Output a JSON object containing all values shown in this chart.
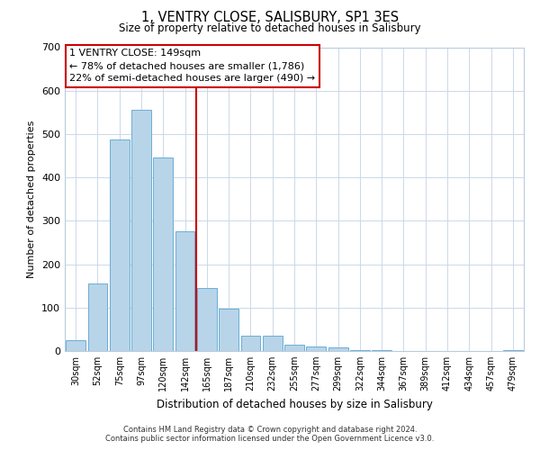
{
  "title": "1, VENTRY CLOSE, SALISBURY, SP1 3ES",
  "subtitle": "Size of property relative to detached houses in Salisbury",
  "xlabel": "Distribution of detached houses by size in Salisbury",
  "ylabel": "Number of detached properties",
  "bar_labels": [
    "30sqm",
    "52sqm",
    "75sqm",
    "97sqm",
    "120sqm",
    "142sqm",
    "165sqm",
    "187sqm",
    "210sqm",
    "232sqm",
    "255sqm",
    "277sqm",
    "299sqm",
    "322sqm",
    "344sqm",
    "367sqm",
    "389sqm",
    "412sqm",
    "434sqm",
    "457sqm",
    "479sqm"
  ],
  "bar_values": [
    25,
    155,
    488,
    555,
    445,
    275,
    145,
    98,
    35,
    35,
    14,
    10,
    8,
    3,
    2,
    1,
    0,
    0,
    0,
    0,
    3
  ],
  "bar_color": "#b8d4e8",
  "bar_edge_color": "#6aaed6",
  "vline_x": 5.5,
  "vline_color": "#cc0000",
  "ylim": [
    0,
    700
  ],
  "yticks": [
    0,
    100,
    200,
    300,
    400,
    500,
    600,
    700
  ],
  "annotation_title": "1 VENTRY CLOSE: 149sqm",
  "annotation_line1": "← 78% of detached houses are smaller (1,786)",
  "annotation_line2": "22% of semi-detached houses are larger (490) →",
  "footnote1": "Contains HM Land Registry data © Crown copyright and database right 2024.",
  "footnote2": "Contains public sector information licensed under the Open Government Licence v3.0.",
  "background_color": "#ffffff",
  "grid_color": "#ccd8e8"
}
